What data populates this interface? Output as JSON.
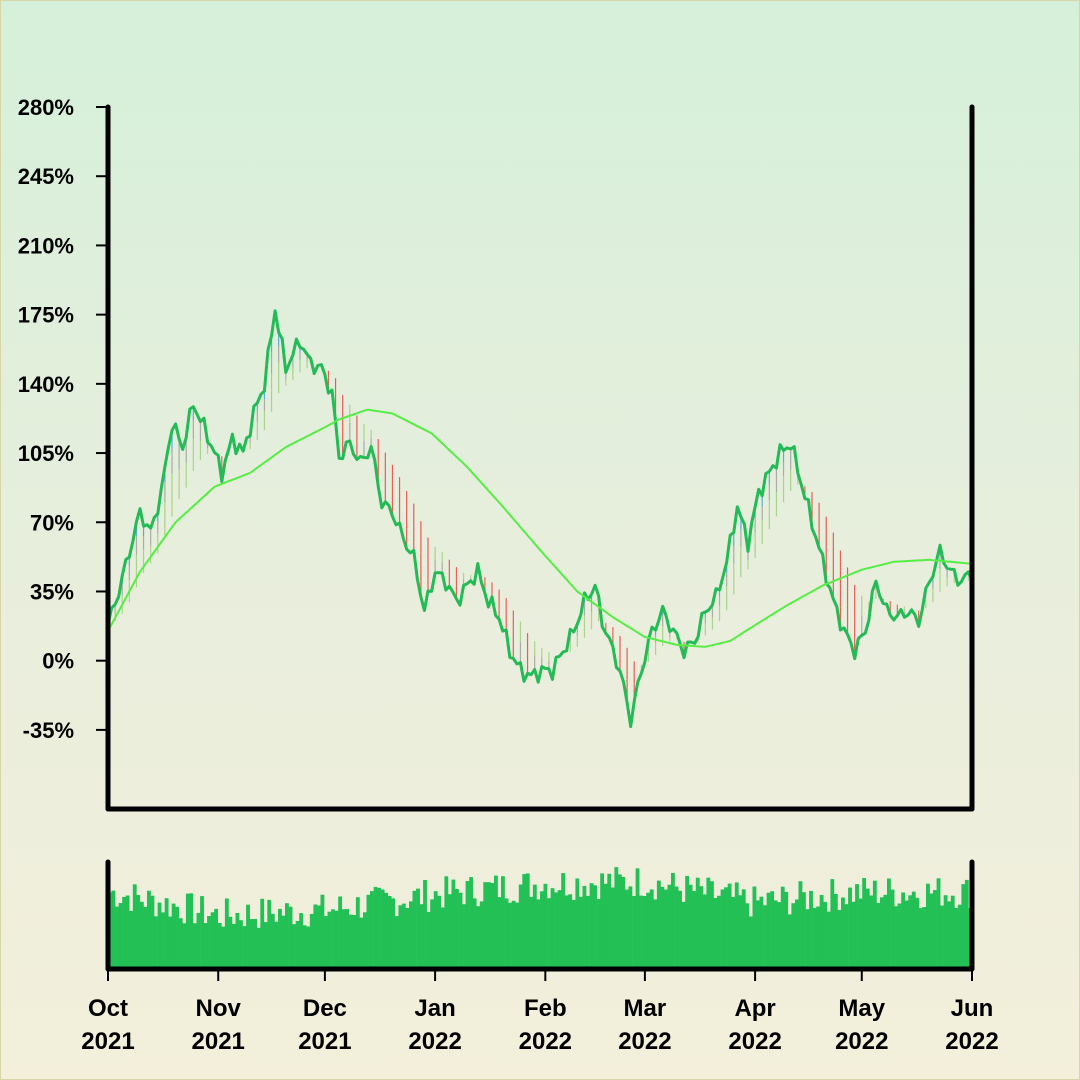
{
  "chart_data": {
    "type": "line",
    "subtype": "price-with-moving-average-ribbon-and-volume",
    "y_axis": {
      "min": -75,
      "max": 280,
      "ticks": [
        -35,
        0,
        35,
        70,
        105,
        140,
        175,
        210,
        245,
        280
      ],
      "tick_labels": [
        "-35%",
        "0%",
        "35%",
        "70%",
        "105%",
        "140%",
        "175%",
        "210%",
        "245%",
        "280%"
      ],
      "unit": "%"
    },
    "x_axis": {
      "start": "2021-10-01",
      "end": "2022-06-01",
      "ticks": [
        {
          "date": "2021-10-01",
          "month": "Oct",
          "year": "2021"
        },
        {
          "date": "2021-11-01",
          "month": "Nov",
          "year": "2021"
        },
        {
          "date": "2021-12-01",
          "month": "Dec",
          "year": "2021"
        },
        {
          "date": "2022-01-01",
          "month": "Jan",
          "year": "2022"
        },
        {
          "date": "2022-02-01",
          "month": "Feb",
          "year": "2022"
        },
        {
          "date": "2022-03-01",
          "month": "Mar",
          "year": "2022"
        },
        {
          "date": "2022-04-01",
          "month": "Apr",
          "year": "2022"
        },
        {
          "date": "2022-05-01",
          "month": "May",
          "year": "2022"
        },
        {
          "date": "2022-06-01",
          "month": "Jun",
          "year": "2022"
        }
      ]
    },
    "series": [
      {
        "role": "price",
        "color": "#22bb55",
        "points": [
          [
            "2021-10-01",
            18
          ],
          [
            "2021-10-04",
            35
          ],
          [
            "2021-10-07",
            55
          ],
          [
            "2021-10-10",
            75
          ],
          [
            "2021-10-13",
            65
          ],
          [
            "2021-10-16",
            85
          ],
          [
            "2021-10-19",
            120
          ],
          [
            "2021-10-22",
            108
          ],
          [
            "2021-10-25",
            130
          ],
          [
            "2021-10-28",
            118
          ],
          [
            "2021-10-31",
            105
          ],
          [
            "2021-11-02",
            95
          ],
          [
            "2021-11-05",
            112
          ],
          [
            "2021-11-08",
            105
          ],
          [
            "2021-11-11",
            125
          ],
          [
            "2021-11-14",
            140
          ],
          [
            "2021-11-17",
            178
          ],
          [
            "2021-11-20",
            148
          ],
          [
            "2021-11-24",
            162
          ],
          [
            "2021-11-27",
            150
          ],
          [
            "2021-11-30",
            148
          ],
          [
            "2021-12-03",
            135
          ],
          [
            "2021-12-05",
            103
          ],
          [
            "2021-12-08",
            110
          ],
          [
            "2021-12-11",
            100
          ],
          [
            "2021-12-14",
            108
          ],
          [
            "2021-12-17",
            80
          ],
          [
            "2021-12-20",
            75
          ],
          [
            "2021-12-23",
            62
          ],
          [
            "2021-12-26",
            52
          ],
          [
            "2021-12-29",
            25
          ],
          [
            "2022-01-01",
            45
          ],
          [
            "2022-01-04",
            40
          ],
          [
            "2022-01-07",
            30
          ],
          [
            "2022-01-10",
            38
          ],
          [
            "2022-01-13",
            45
          ],
          [
            "2022-01-16",
            30
          ],
          [
            "2022-01-19",
            22
          ],
          [
            "2022-01-22",
            5
          ],
          [
            "2022-01-25",
            -5
          ],
          [
            "2022-01-28",
            -8
          ],
          [
            "2022-01-31",
            -5
          ],
          [
            "2022-02-03",
            -5
          ],
          [
            "2022-02-06",
            5
          ],
          [
            "2022-02-09",
            15
          ],
          [
            "2022-02-12",
            30
          ],
          [
            "2022-02-15",
            38
          ],
          [
            "2022-02-17",
            20
          ],
          [
            "2022-02-19",
            10
          ],
          [
            "2022-02-22",
            -5
          ],
          [
            "2022-02-25",
            -30
          ],
          [
            "2022-02-28",
            -5
          ],
          [
            "2022-03-03",
            15
          ],
          [
            "2022-03-06",
            25
          ],
          [
            "2022-03-09",
            15
          ],
          [
            "2022-03-12",
            5
          ],
          [
            "2022-03-15",
            10
          ],
          [
            "2022-03-18",
            25
          ],
          [
            "2022-03-21",
            32
          ],
          [
            "2022-03-24",
            50
          ],
          [
            "2022-03-27",
            78
          ],
          [
            "2022-03-30",
            60
          ],
          [
            "2022-04-02",
            85
          ],
          [
            "2022-04-05",
            95
          ],
          [
            "2022-04-08",
            105
          ],
          [
            "2022-04-11",
            110
          ],
          [
            "2022-04-14",
            90
          ],
          [
            "2022-04-17",
            70
          ],
          [
            "2022-04-20",
            50
          ],
          [
            "2022-04-23",
            30
          ],
          [
            "2022-04-26",
            15
          ],
          [
            "2022-04-29",
            5
          ],
          [
            "2022-05-02",
            15
          ],
          [
            "2022-05-05",
            40
          ],
          [
            "2022-05-08",
            25
          ],
          [
            "2022-05-11",
            22
          ],
          [
            "2022-05-14",
            25
          ],
          [
            "2022-05-17",
            20
          ],
          [
            "2022-05-20",
            40
          ],
          [
            "2022-05-23",
            55
          ],
          [
            "2022-05-26",
            45
          ],
          [
            "2022-05-29",
            40
          ],
          [
            "2022-06-01",
            45
          ]
        ]
      },
      {
        "role": "moving-average",
        "color": "#55ee44",
        "points": [
          [
            "2021-10-01",
            15
          ],
          [
            "2021-10-10",
            45
          ],
          [
            "2021-10-20",
            70
          ],
          [
            "2021-10-31",
            88
          ],
          [
            "2021-11-10",
            95
          ],
          [
            "2021-11-20",
            108
          ],
          [
            "2021-12-01",
            118
          ],
          [
            "2021-12-05",
            122
          ],
          [
            "2021-12-13",
            127
          ],
          [
            "2021-12-20",
            125
          ],
          [
            "2021-12-31",
            115
          ],
          [
            "2022-01-10",
            98
          ],
          [
            "2022-01-20",
            78
          ],
          [
            "2022-01-31",
            55
          ],
          [
            "2022-02-10",
            35
          ],
          [
            "2022-02-20",
            22
          ],
          [
            "2022-03-01",
            12
          ],
          [
            "2022-03-10",
            8
          ],
          [
            "2022-03-18",
            7
          ],
          [
            "2022-03-25",
            10
          ],
          [
            "2022-04-01",
            18
          ],
          [
            "2022-04-10",
            28
          ],
          [
            "2022-04-20",
            38
          ],
          [
            "2022-05-01",
            46
          ],
          [
            "2022-05-10",
            50
          ],
          [
            "2022-05-20",
            51
          ],
          [
            "2022-06-01",
            49
          ]
        ]
      }
    ],
    "volume": {
      "color": "#22c055",
      "monthly_level": [
        [
          "2021-10-01",
          0.72
        ],
        [
          "2021-11-01",
          0.5
        ],
        [
          "2021-12-01",
          0.55
        ],
        [
          "2022-01-01",
          0.7
        ],
        [
          "2022-02-01",
          0.8
        ],
        [
          "2022-03-01",
          0.82
        ],
        [
          "2022-04-01",
          0.62
        ],
        [
          "2022-05-01",
          0.72
        ],
        [
          "2022-06-01",
          0.72
        ]
      ]
    },
    "colors": {
      "down_band": "#ee3333",
      "up_band": "#3399dd",
      "neutral_band": "#999999",
      "trail_band": "#99cc77"
    },
    "grid": false,
    "legend": "none"
  }
}
